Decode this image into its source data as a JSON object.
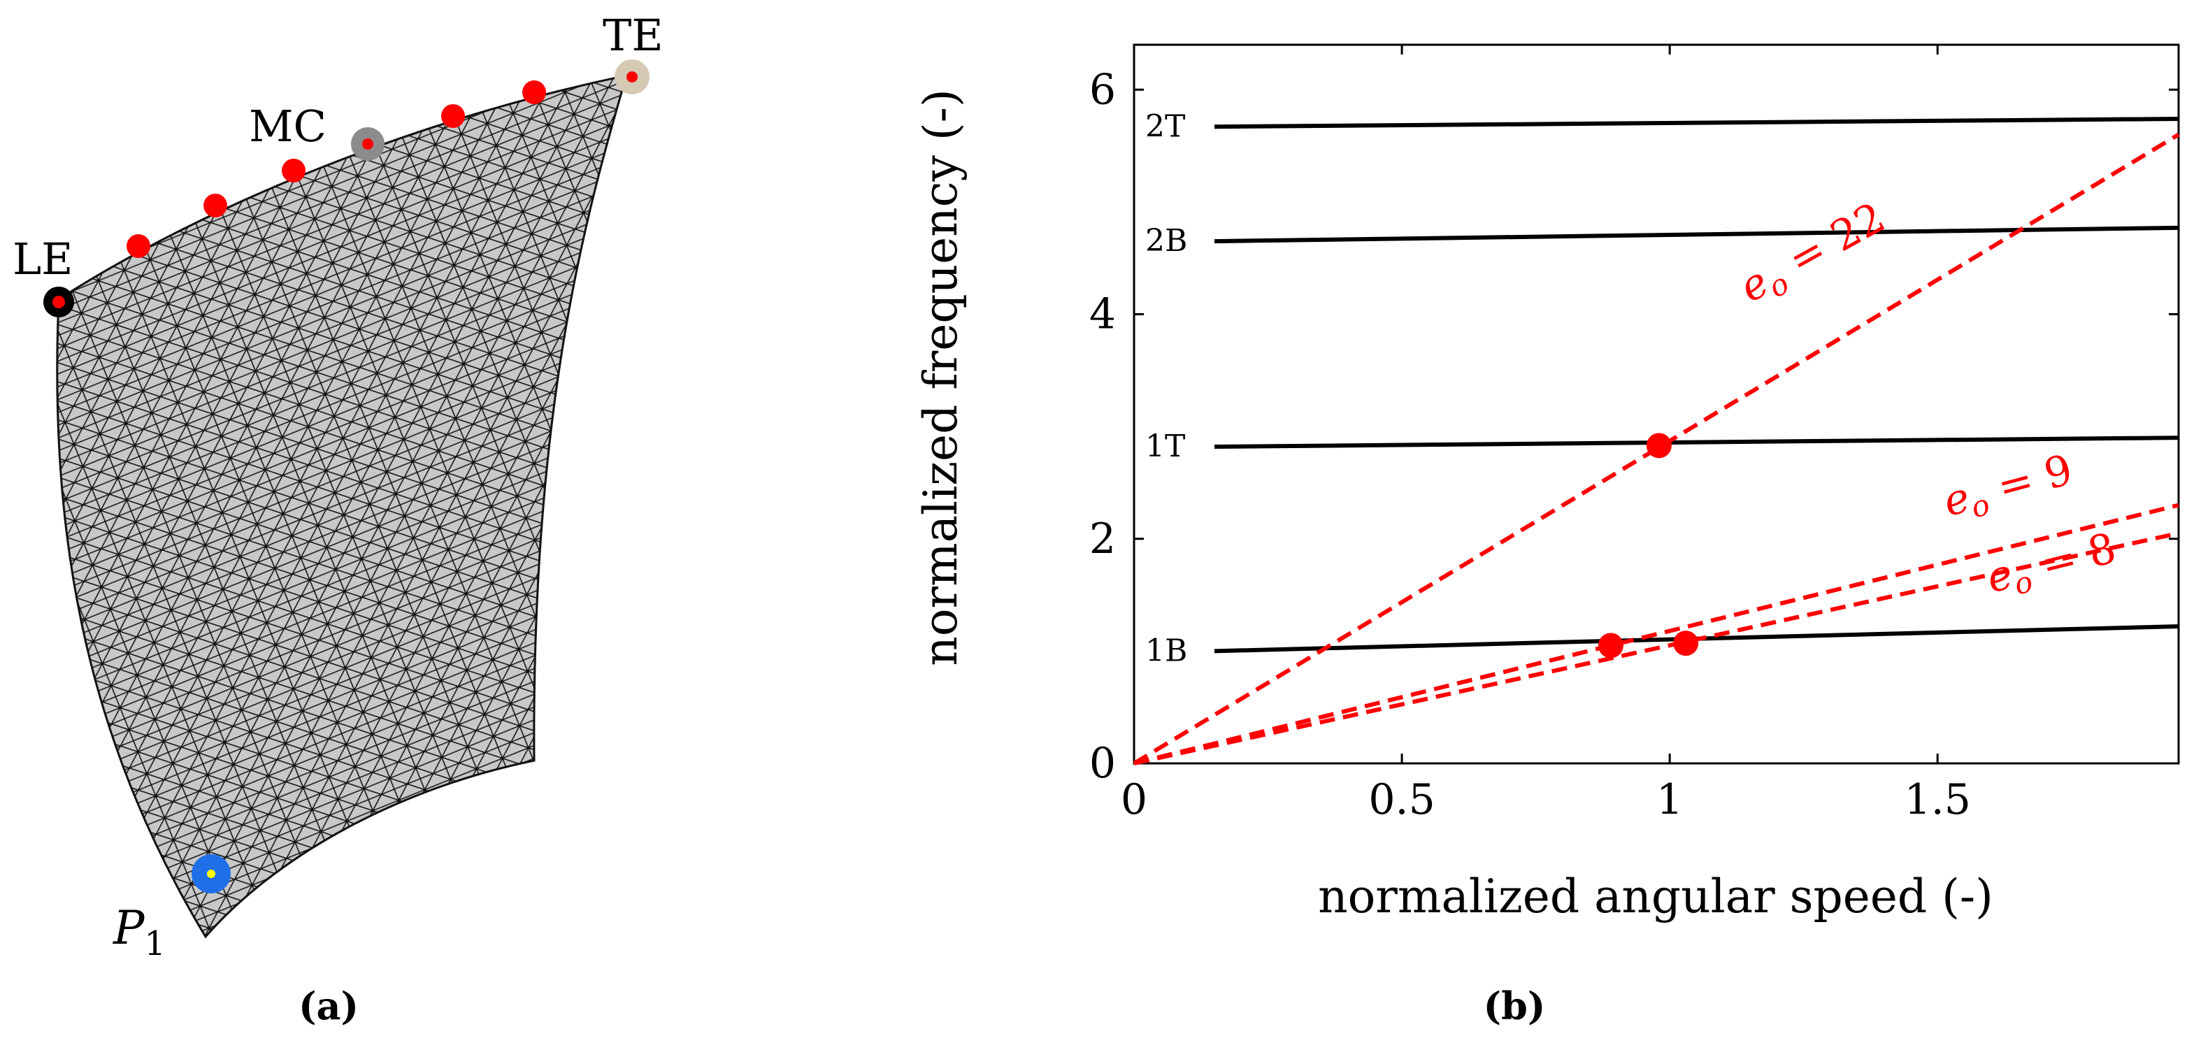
{
  "panel_a": {
    "caption": "(a)",
    "labels": {
      "le": "LE",
      "mc": "MC",
      "te": "TE",
      "p1_base": "P",
      "p1_sub": "1"
    },
    "colors": {
      "mesh_fill": "#c8c8c8",
      "mesh_line": "#111111",
      "sensor": "#ff0000",
      "le_marker": "#000000",
      "mc_marker": "#8c8c8c",
      "te_marker": "#d6c9b4",
      "p1_marker": "#1f6fe8",
      "p1_center": "#ffff00"
    }
  },
  "panel_b": {
    "caption": "(b)",
    "colors": {
      "mode_line": "#000000",
      "excitation_line": "#ff0000"
    }
  },
  "chart_data": {
    "type": "line",
    "xlabel": "normalized angular speed (-)",
    "ylabel": "normalized frequency (-)",
    "xlim": [
      0,
      1.95
    ],
    "ylim": [
      0,
      6.4
    ],
    "xticks": [
      0,
      0.5,
      1,
      1.5
    ],
    "xtick_labels": [
      "0",
      "0.5",
      "1",
      "1.5"
    ],
    "yticks": [
      0,
      2,
      4,
      6
    ],
    "ytick_labels": [
      "0",
      "2",
      "4",
      "6"
    ],
    "modes": [
      {
        "name": "1B",
        "x": [
          0.15,
          1.95
        ],
        "y": [
          1.0,
          1.22
        ]
      },
      {
        "name": "1T",
        "x": [
          0.15,
          1.95
        ],
        "y": [
          2.82,
          2.9
        ]
      },
      {
        "name": "2B",
        "x": [
          0.15,
          1.95
        ],
        "y": [
          4.65,
          4.77
        ]
      },
      {
        "name": "2T",
        "x": [
          0.15,
          1.95
        ],
        "y": [
          5.67,
          5.74
        ]
      }
    ],
    "engine_orders": [
      {
        "label_base": "e",
        "label_sub": "o",
        "label_rest": " = 22",
        "eo": 22,
        "x": [
          0,
          1.95
        ],
        "y": [
          0,
          5.6
        ]
      },
      {
        "label_base": "e",
        "label_sub": "o",
        "label_rest": " = 9",
        "eo": 9,
        "x": [
          0,
          1.95
        ],
        "y": [
          0,
          2.3
        ]
      },
      {
        "label_base": "e",
        "label_sub": "o",
        "label_rest": " = 8",
        "eo": 8,
        "x": [
          0,
          1.95
        ],
        "y": [
          0,
          2.05
        ]
      }
    ],
    "crossings": [
      {
        "x": 0.98,
        "y": 2.83,
        "label": "eo22 x 1T"
      },
      {
        "x": 0.89,
        "y": 1.05,
        "label": "eo9 x 1B"
      },
      {
        "x": 1.03,
        "y": 1.07,
        "label": "eo8 x 1B"
      }
    ]
  }
}
